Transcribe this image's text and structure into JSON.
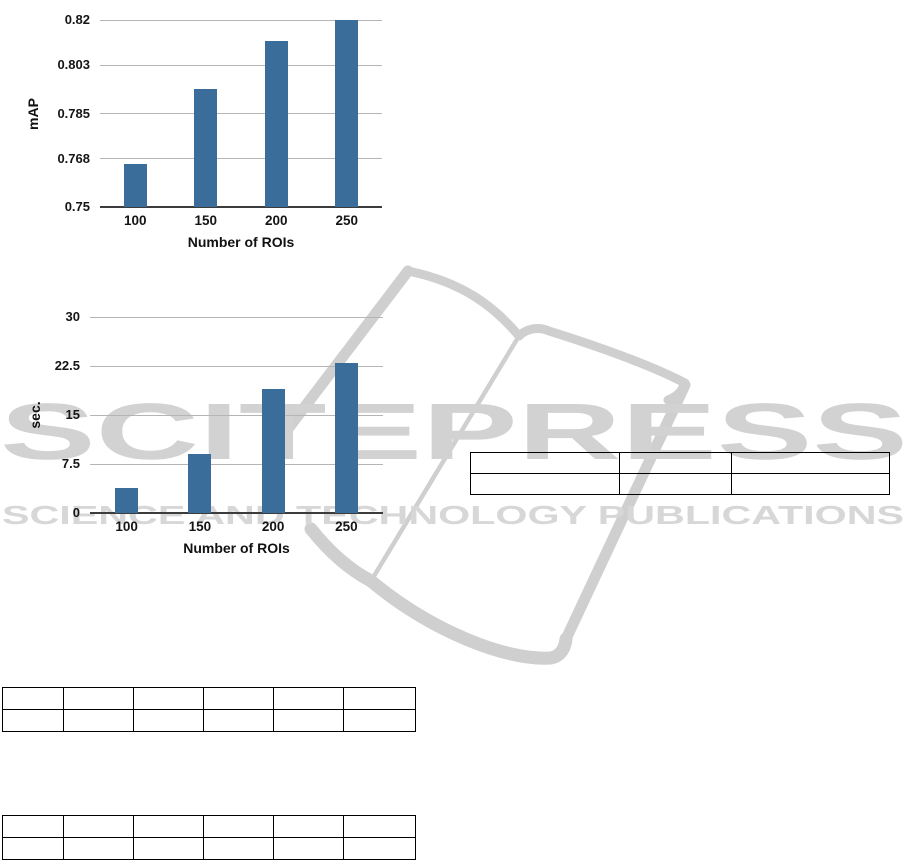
{
  "watermark": {
    "brand": "SCITEPRESS",
    "subtitle": "SCIENCE AND TECHNOLOGY PUBLICATIONS",
    "brand_color": "#d2d2d2",
    "subtitle_color": "#d7d7d7",
    "book_logo_color": "#cfcfcf"
  },
  "chart_data": [
    {
      "type": "bar",
      "title": "",
      "categories": [
        "100",
        "150",
        "200",
        "250"
      ],
      "values": [
        0.766,
        0.794,
        0.812,
        0.82
      ],
      "xlabel": "Number of ROIs",
      "ylabel": "mAP",
      "ylim": [
        0.75,
        0.82
      ],
      "yticks": [
        0.75,
        0.768,
        0.785,
        0.803,
        0.82
      ],
      "ytick_labels": [
        "0.75",
        "0.768",
        "0.785",
        "0.803",
        "0.82"
      ],
      "bar_color": "#3b6d9b",
      "grid": true,
      "legend": null
    },
    {
      "type": "bar",
      "title": "",
      "categories": [
        "100",
        "150",
        "200",
        "250"
      ],
      "values": [
        3.8,
        9.0,
        19.0,
        23.0
      ],
      "xlabel": "Number of ROIs",
      "ylabel": "sec.",
      "ylim": [
        0,
        30
      ],
      "yticks": [
        0,
        7.5,
        15,
        22.5,
        30
      ],
      "ytick_labels": [
        "0",
        "7.5",
        "15",
        "22.5",
        "30"
      ],
      "bar_color": "#3b6d9b",
      "grid": true,
      "legend": null
    }
  ],
  "tables": [
    {
      "name": "right-empty-table",
      "rows": [
        [
          "",
          "",
          ""
        ],
        [
          "",
          "",
          ""
        ]
      ]
    },
    {
      "name": "bottom-empty-table-1",
      "rows": [
        [
          "",
          "",
          "",
          "",
          "",
          ""
        ],
        [
          "",
          "",
          "",
          "",
          "",
          ""
        ]
      ]
    },
    {
      "name": "bottom-empty-table-2",
      "rows": [
        [
          "",
          "",
          "",
          "",
          "",
          ""
        ],
        [
          "",
          "",
          "",
          "",
          "",
          ""
        ]
      ]
    }
  ]
}
